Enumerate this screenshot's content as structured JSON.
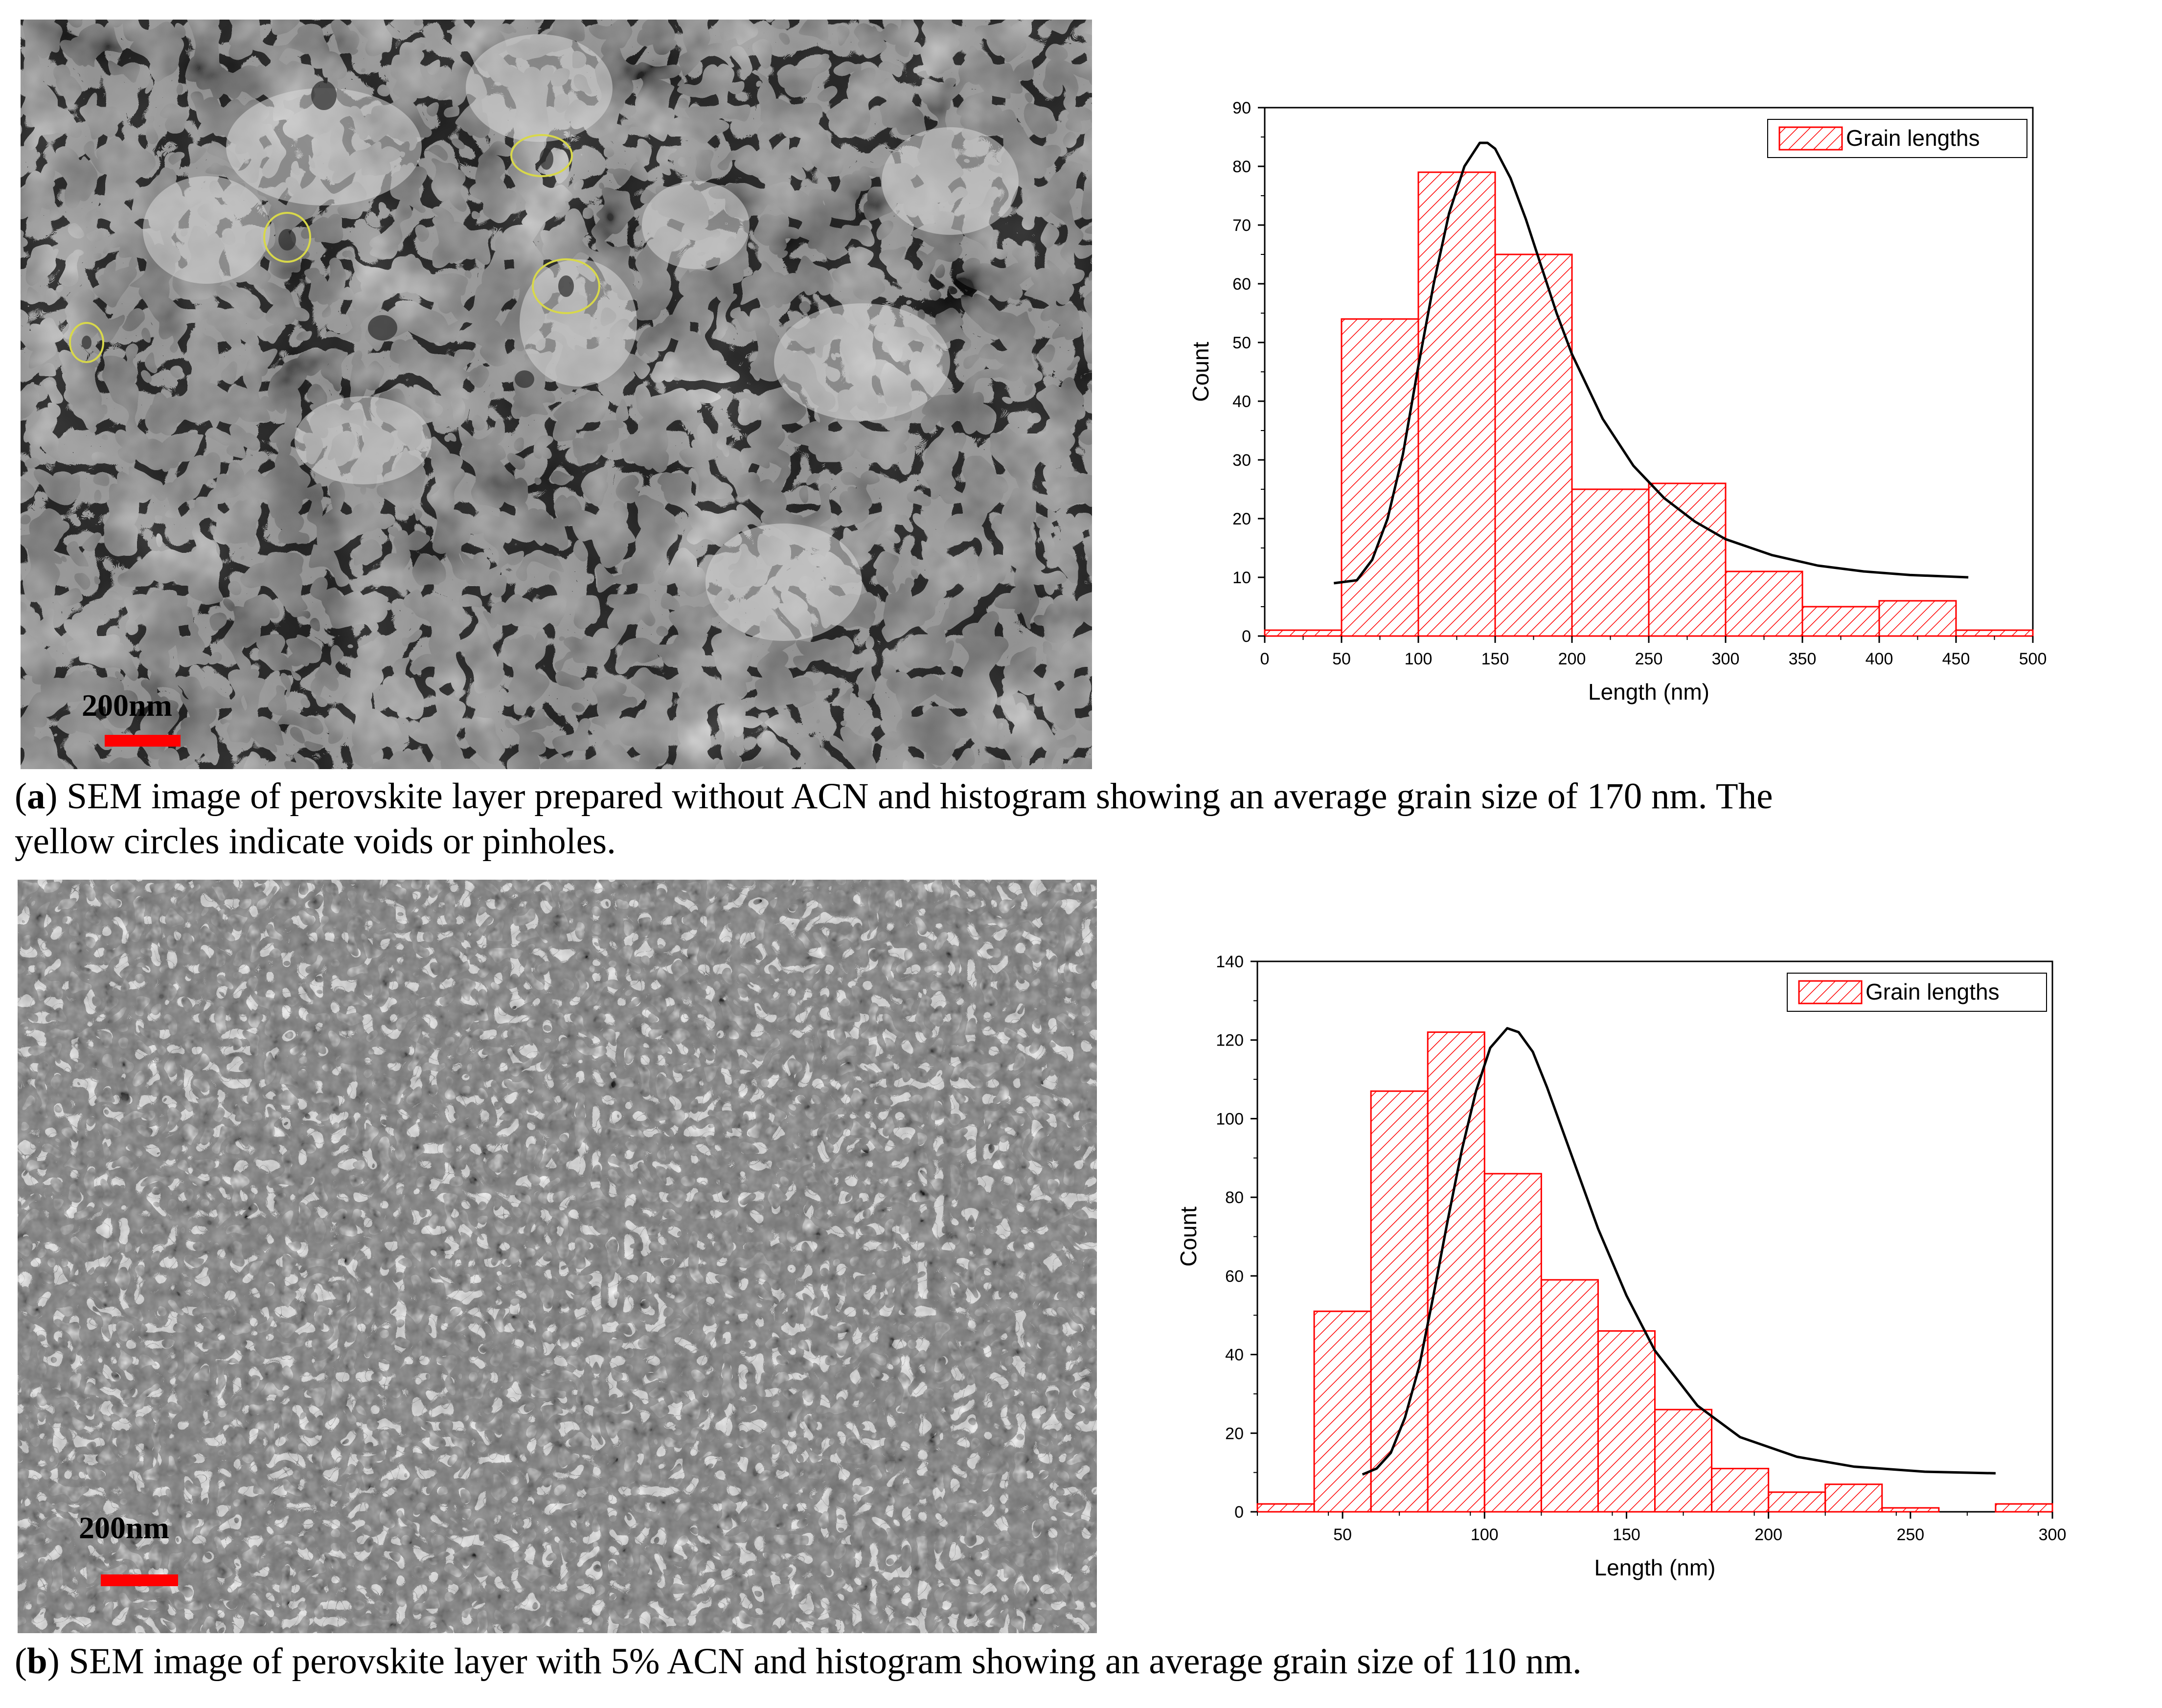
{
  "panel_a": {
    "scale_label": "200nm",
    "caption_letter": "a",
    "caption_text": "SEM image of perovskite layer prepared without ACN and histogram showing an average grain size of 170 nm. The yellow circles indicate voids or pinholes.",
    "caption_line1": "SEM image of perovskite layer prepared without ACN and histogram showing an average grain size of 170 nm. The",
    "caption_line2": "yellow circles indicate voids or pinholes."
  },
  "panel_b": {
    "scale_label": "200nm",
    "caption_letter": "b",
    "caption_text": "SEM image of perovskite layer with 5% ACN and histogram showing an average grain size of 110 nm."
  },
  "colors": {
    "bar_edge": "#ff0000",
    "hatch": "#ff0000",
    "fit_line": "#000000",
    "scale_bar": "#ff0000",
    "circle": "#d8d84a"
  },
  "chart_data": [
    {
      "type": "bar",
      "title": "",
      "xlabel": "Length (nm)",
      "ylabel": "Count",
      "legend": "Grain lengths",
      "legend_position": "top-right",
      "xlim": [
        0,
        500
      ],
      "ylim": [
        0,
        90
      ],
      "xticks": [
        0,
        50,
        100,
        150,
        200,
        250,
        300,
        350,
        400,
        450,
        500
      ],
      "yticks": [
        0,
        10,
        20,
        30,
        40,
        50,
        60,
        70,
        80,
        90
      ],
      "bin_width": 50,
      "bins": [
        {
          "start": 0,
          "value": 1
        },
        {
          "start": 50,
          "value": 54
        },
        {
          "start": 100,
          "value": 79
        },
        {
          "start": 150,
          "value": 65
        },
        {
          "start": 200,
          "value": 25
        },
        {
          "start": 250,
          "value": 26
        },
        {
          "start": 300,
          "value": 11
        },
        {
          "start": 350,
          "value": 5
        },
        {
          "start": 400,
          "value": 6
        },
        {
          "start": 450,
          "value": 1
        }
      ],
      "fit": {
        "x": [
          45,
          60,
          70,
          80,
          90,
          100,
          110,
          120,
          130,
          140,
          145,
          150,
          160,
          170,
          180,
          190,
          200,
          220,
          240,
          260,
          280,
          300,
          330,
          360,
          390,
          420,
          458
        ],
        "y": [
          9,
          9.5,
          13,
          20,
          31,
          46,
          60,
          72,
          80,
          84,
          84,
          83,
          78,
          71,
          63,
          55,
          48,
          37,
          29,
          23.5,
          19.5,
          16.5,
          13.8,
          12,
          11,
          10.4,
          10
        ]
      }
    },
    {
      "type": "bar",
      "title": "",
      "xlabel": "Length (nm)",
      "ylabel": "Count",
      "legend": "Grain lengths",
      "legend_position": "top-right",
      "xlim": [
        20,
        300
      ],
      "ylim": [
        0,
        140
      ],
      "xticks": [
        50,
        100,
        150,
        200,
        250,
        300
      ],
      "yticks": [
        0,
        20,
        40,
        60,
        80,
        100,
        120,
        140
      ],
      "bin_width": 20,
      "bins": [
        {
          "start": 20,
          "value": 2
        },
        {
          "start": 40,
          "value": 51
        },
        {
          "start": 60,
          "value": 107
        },
        {
          "start": 80,
          "value": 122
        },
        {
          "start": 100,
          "value": 86
        },
        {
          "start": 120,
          "value": 59
        },
        {
          "start": 140,
          "value": 46
        },
        {
          "start": 160,
          "value": 26
        },
        {
          "start": 180,
          "value": 11
        },
        {
          "start": 200,
          "value": 5
        },
        {
          "start": 220,
          "value": 7
        },
        {
          "start": 240,
          "value": 1
        },
        {
          "start": 280,
          "value": 2
        }
      ],
      "fit": {
        "x": [
          57,
          62,
          67,
          72,
          77,
          82,
          87,
          92,
          97,
          102,
          108,
          112,
          117,
          122,
          130,
          140,
          150,
          160,
          175,
          190,
          210,
          230,
          255,
          280
        ],
        "y": [
          9.5,
          11,
          15,
          24,
          37,
          55,
          74,
          92,
          107,
          118,
          123,
          122,
          117,
          108,
          92,
          72,
          55,
          41,
          27,
          19,
          14,
          11.5,
          10.2,
          9.8
        ]
      }
    }
  ]
}
